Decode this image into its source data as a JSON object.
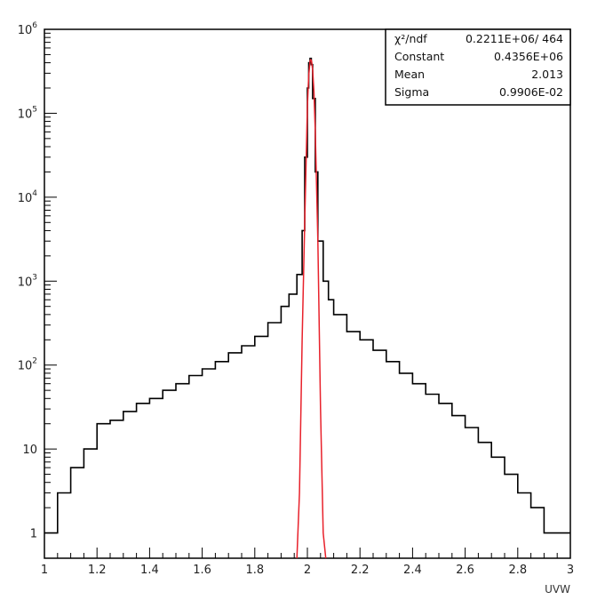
{
  "chart_data": {
    "type": "line",
    "title": "",
    "xlabel": "UVW",
    "ylabel": "",
    "xlim": [
      1,
      3
    ],
    "ylim": [
      0.5,
      1000000
    ],
    "y_scale": "log",
    "grid": false,
    "x_ticks": [
      "1",
      "1.2",
      "1.4",
      "1.6",
      "1.8",
      "2",
      "2.2",
      "2.4",
      "2.6",
      "2.8",
      "3"
    ],
    "y_ticks": [
      {
        "value": 1,
        "mantissa": "1",
        "exp": ""
      },
      {
        "value": 10,
        "mantissa": "10",
        "exp": ""
      },
      {
        "value": 100,
        "mantissa": "10",
        "exp": "2"
      },
      {
        "value": 1000,
        "mantissa": "10",
        "exp": "3"
      },
      {
        "value": 10000,
        "mantissa": "10",
        "exp": "4"
      },
      {
        "value": 100000,
        "mantissa": "10",
        "exp": "5"
      },
      {
        "value": 1000000,
        "mantissa": "10",
        "exp": "6"
      }
    ],
    "series": [
      {
        "role": "histogram",
        "color": "#000000",
        "x": [
          1.0,
          1.05,
          1.1,
          1.15,
          1.2,
          1.25,
          1.3,
          1.35,
          1.4,
          1.45,
          1.5,
          1.55,
          1.6,
          1.65,
          1.7,
          1.75,
          1.8,
          1.85,
          1.9,
          1.93,
          1.96,
          1.98,
          1.99,
          2.0,
          2.005,
          2.01,
          2.015,
          2.02,
          2.03,
          2.04,
          2.06,
          2.08,
          2.1,
          2.15,
          2.2,
          2.25,
          2.3,
          2.35,
          2.4,
          2.45,
          2.5,
          2.55,
          2.6,
          2.65,
          2.7,
          2.75,
          2.8,
          2.85,
          2.9,
          2.95
        ],
        "values": [
          1,
          3,
          6,
          10,
          20,
          22,
          28,
          35,
          40,
          50,
          60,
          75,
          90,
          110,
          140,
          170,
          220,
          320,
          500,
          700,
          1200,
          4000,
          30000,
          200000,
          400000,
          450000,
          380000,
          150000,
          20000,
          3000,
          1000,
          600,
          400,
          250,
          200,
          150,
          110,
          80,
          60,
          45,
          35,
          25,
          18,
          12,
          8,
          5,
          3,
          2,
          1,
          1
        ]
      },
      {
        "role": "gaussian-fit",
        "color": "#e8212b",
        "x": [
          1.96,
          1.97,
          1.98,
          1.99,
          2.0,
          2.005,
          2.01,
          2.013,
          2.016,
          2.02,
          2.025,
          2.03,
          2.04,
          2.05,
          2.06,
          2.07
        ],
        "values": [
          0.5,
          3,
          200,
          5000,
          120000,
          280000,
          420000,
          435000,
          420000,
          330000,
          180000,
          60000,
          3000,
          30,
          1,
          0.5
        ]
      }
    ],
    "stats_box": [
      {
        "label": "χ²/ndf",
        "value": "0.2211E+06/ 464"
      },
      {
        "label": "Constant",
        "value": "0.4356E+06"
      },
      {
        "label": "Mean",
        "value": "2.013"
      },
      {
        "label": "Sigma",
        "value": "0.9906E-02"
      }
    ]
  }
}
